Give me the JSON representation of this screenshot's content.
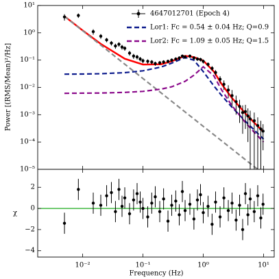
{
  "chart_data": [
    {
      "type": "errorbar",
      "xscale": "log",
      "yscale": "log",
      "ylabel": "Power [(RMS/Mean)²/Hz]",
      "xlim": [
        0.0018,
        15
      ],
      "ylim": [
        1e-05,
        10
      ],
      "xticks": [
        0.01,
        0.1,
        1,
        10
      ],
      "yticks": [
        {
          "value": 10,
          "label": "10¹"
        },
        {
          "value": 1,
          "label": "10⁰"
        },
        {
          "value": 0.1,
          "label": "10⁻¹"
        },
        {
          "value": 0.01,
          "label": "10⁻²"
        },
        {
          "value": 0.001,
          "label": "10⁻³"
        },
        {
          "value": 0.0001,
          "label": "10⁻⁴"
        },
        {
          "value": 1e-05,
          "label": "10⁻⁵"
        }
      ],
      "series": [
        {
          "name": "4647012701 (Epoch 4)",
          "color": "#000000",
          "x": [
            0.005,
            0.0085,
            0.015,
            0.02,
            0.025,
            0.03,
            0.035,
            0.04,
            0.045,
            0.05,
            0.06,
            0.07,
            0.08,
            0.09,
            0.1,
            0.12,
            0.14,
            0.16,
            0.19,
            0.22,
            0.26,
            0.3,
            0.35,
            0.4,
            0.45,
            0.5,
            0.6,
            0.7,
            0.8,
            0.9,
            1.0,
            1.2,
            1.4,
            1.6,
            1.9,
            2.2,
            2.6,
            3.0,
            3.5,
            4.0,
            4.5,
            5.0,
            5.5,
            6.0,
            7.0,
            8.0,
            9.0,
            9.8
          ],
          "values": [
            3.8,
            4.3,
            1.1,
            0.75,
            0.55,
            0.42,
            0.33,
            0.38,
            0.3,
            0.27,
            0.18,
            0.14,
            0.13,
            0.11,
            0.095,
            0.09,
            0.085,
            0.075,
            0.08,
            0.085,
            0.09,
            0.1,
            0.11,
            0.12,
            0.14,
            0.13,
            0.14,
            0.12,
            0.11,
            0.105,
            0.09,
            0.07,
            0.05,
            0.035,
            0.02,
            0.013,
            0.008,
            0.005,
            0.003,
            0.002,
            0.0012,
            0.0013,
            0.0009,
            0.0007,
            0.0006,
            0.0004,
            0.0003,
            0.00025
          ],
          "errors": [
            1.0,
            0.8,
            0.25,
            0.15,
            0.1,
            0.08,
            0.07,
            0.07,
            0.06,
            0.05,
            0.035,
            0.03,
            0.025,
            0.02,
            0.018,
            0.016,
            0.015,
            0.013,
            0.013,
            0.014,
            0.014,
            0.015,
            0.016,
            0.018,
            0.02,
            0.02,
            0.02,
            0.018,
            0.017,
            0.016,
            0.015,
            0.012,
            0.01,
            0.008,
            0.006,
            0.005,
            0.004,
            0.003,
            0.002,
            0.0015,
            0.001,
            0.001,
            0.0008,
            0.0007,
            0.0006,
            0.0004,
            0.0003,
            0.0002
          ]
        }
      ],
      "model_x": [
        0.005,
        0.01,
        0.02,
        0.05,
        0.1,
        0.2,
        0.3,
        0.5,
        0.7,
        1,
        1.5,
        2,
        3,
        5,
        7,
        10
      ],
      "models": [
        {
          "color": "#ff0000",
          "dash": "solid",
          "values": [
            4.04,
            1.23,
            0.392,
            0.112,
            0.0688,
            0.0706,
            0.0912,
            0.143,
            0.128,
            0.0953,
            0.0381,
            0.0136,
            0.00406,
            0.00111,
            0.00051,
            0.000235
          ]
        },
        {
          "color": "#888888",
          "dash": "dashed",
          "values": [
            4,
            1.19,
            0.354,
            0.0711,
            0.0212,
            0.00629,
            0.00309,
            0.00126,
            0.0007,
            0.000376,
            0.000185,
            0.000112,
            5.5e-05,
            2.25e-05,
            1.25e-05,
            6.7e-06
          ]
        },
        {
          "name": "Lor1: Fc = 0.54 ± 0.04 Hz; Q=0.9",
          "color": "#0b1a8c",
          "dash": "dashed",
          "values": [
            0.0305,
            0.0309,
            0.0318,
            0.0347,
            0.0404,
            0.0557,
            0.0776,
            0.125,
            0.0991,
            0.038,
            0.01133,
            0.00516,
            0.00187,
            0.000574,
            0.000274,
            0.000128
          ]
        },
        {
          "name": "Lor2: Fc = 1.09 ± 0.05 Hz; Q=1.5",
          "color": "#8b0a8b",
          "dash": "dashed",
          "values": [
            0.00609,
            0.00614,
            0.00624,
            0.00657,
            0.00717,
            0.00863,
            0.01054,
            0.0166,
            0.0281,
            0.0569,
            0.0266,
            0.0083,
            0.00211,
            0.000517,
            0.000227,
            0.0001
          ]
        }
      ],
      "legend": "upper right"
    },
    {
      "type": "errorbar",
      "xscale": "log",
      "yscale": "linear",
      "xlabel": "Frequency (Hz)",
      "ylabel": "χ",
      "xlim": [
        0.0018,
        15
      ],
      "ylim": [
        -4.6,
        3.7
      ],
      "xticks": [
        {
          "value": 0.01,
          "label": "10⁻²"
        },
        {
          "value": 0.1,
          "label": "10⁻¹"
        },
        {
          "value": 1,
          "label": "10⁰"
        },
        {
          "value": 10,
          "label": "10¹"
        }
      ],
      "yticks": [
        {
          "value": -4,
          "label": "−4"
        },
        {
          "value": -2,
          "label": "−2"
        },
        0,
        2
      ],
      "hline": 0,
      "hline_color": "#00a000",
      "series": [
        {
          "color": "#000000",
          "x": [
            0.005,
            0.0085,
            0.015,
            0.02,
            0.025,
            0.03,
            0.035,
            0.04,
            0.045,
            0.05,
            0.06,
            0.07,
            0.08,
            0.09,
            0.1,
            0.12,
            0.14,
            0.16,
            0.19,
            0.22,
            0.26,
            0.3,
            0.35,
            0.4,
            0.45,
            0.5,
            0.6,
            0.7,
            0.8,
            0.9,
            1.0,
            1.2,
            1.4,
            1.6,
            1.9,
            2.2,
            2.6,
            3.0,
            3.5,
            4.0,
            4.5,
            5.0,
            5.5,
            6.0,
            7.0,
            8.0,
            9.0,
            9.8
          ],
          "values": [
            -1.4,
            1.8,
            0.5,
            0.3,
            1.2,
            1.5,
            -0.3,
            1.8,
            0.2,
            1.0,
            -0.5,
            0.8,
            1.4,
            0.6,
            0.0,
            -0.8,
            0.5,
            1.1,
            -0.3,
            0.9,
            -1.2,
            0.3,
            0.7,
            -0.6,
            1.6,
            -0.2,
            0.4,
            -1.0,
            0.8,
            1.3,
            -0.4,
            0.2,
            -1.5,
            0.6,
            -0.8,
            1.0,
            -0.2,
            0.5,
            -1.1,
            0.3,
            -2.0,
            1.4,
            -0.6,
            0.9,
            -0.3,
            1.2,
            -0.9,
            0.4
          ],
          "errors": [
            1,
            1,
            1,
            1,
            1,
            1,
            1,
            1,
            1,
            1,
            1,
            1,
            1,
            1,
            1,
            1,
            1,
            1,
            1,
            1,
            1,
            1,
            1,
            1,
            1,
            1,
            1,
            1,
            1,
            1,
            1,
            1,
            1,
            1,
            1,
            1,
            1,
            1,
            1,
            1,
            1,
            1,
            1,
            1,
            1,
            1,
            1,
            1
          ]
        }
      ]
    }
  ]
}
